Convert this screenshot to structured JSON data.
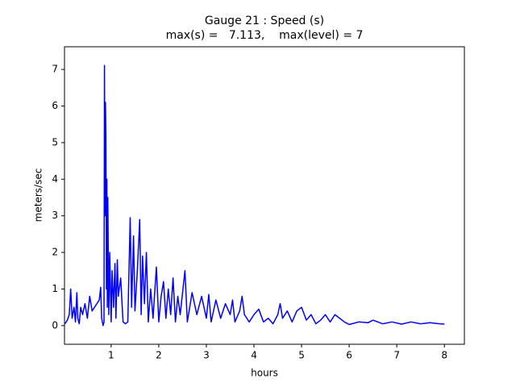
{
  "chart_data": {
    "type": "line",
    "title": "Gauge 21 : Speed (s)",
    "subtitle": "max(s) =   7.113,    max(level) = 7",
    "x_label": "hours",
    "y_label": "meters/sec",
    "x": [
      0.03,
      0.08,
      0.12,
      0.15,
      0.18,
      0.22,
      0.25,
      0.28,
      0.3,
      0.33,
      0.36,
      0.4,
      0.45,
      0.5,
      0.55,
      0.6,
      0.65,
      0.7,
      0.75,
      0.78,
      0.8,
      0.83,
      0.85,
      0.86,
      0.87,
      0.88,
      0.89,
      0.9,
      0.91,
      0.92,
      0.93,
      0.95,
      0.97,
      1.0,
      1.02,
      1.05,
      1.08,
      1.1,
      1.13,
      1.15,
      1.2,
      1.25,
      1.3,
      1.35,
      1.4,
      1.43,
      1.47,
      1.5,
      1.55,
      1.6,
      1.63,
      1.66,
      1.7,
      1.74,
      1.78,
      1.83,
      1.88,
      1.95,
      2.0,
      2.05,
      2.1,
      2.15,
      2.2,
      2.25,
      2.3,
      2.35,
      2.4,
      2.45,
      2.55,
      2.6,
      2.7,
      2.8,
      2.9,
      3.0,
      3.05,
      3.1,
      3.2,
      3.3,
      3.4,
      3.5,
      3.55,
      3.6,
      3.7,
      3.75,
      3.8,
      3.9,
      4.0,
      4.1,
      4.2,
      4.3,
      4.4,
      4.5,
      4.55,
      4.6,
      4.7,
      4.8,
      4.9,
      5.0,
      5.1,
      5.2,
      5.3,
      5.4,
      5.5,
      5.6,
      5.7,
      5.8,
      5.9,
      6.0,
      6.2,
      6.4,
      6.5,
      6.7,
      6.9,
      7.1,
      7.3,
      7.5,
      7.7,
      7.9,
      8.0
    ],
    "series": [
      {
        "name": "speed",
        "color": "#0000ff",
        "values": [
          0.05,
          0.15,
          0.3,
          1.0,
          0.2,
          0.5,
          0.1,
          0.9,
          0.2,
          0.05,
          0.5,
          0.3,
          0.6,
          0.2,
          0.8,
          0.4,
          0.5,
          0.6,
          0.7,
          1.05,
          0.2,
          0.0,
          0.1,
          7.11,
          3.0,
          6.1,
          5.2,
          1.0,
          4.0,
          0.5,
          3.5,
          0.3,
          2.0,
          0.1,
          1.5,
          0.5,
          1.7,
          0.2,
          1.8,
          0.8,
          1.3,
          0.1,
          0.05,
          0.1,
          2.95,
          0.5,
          2.45,
          0.4,
          1.5,
          2.9,
          0.3,
          1.9,
          0.6,
          2.0,
          0.1,
          1.0,
          0.2,
          1.6,
          0.1,
          0.8,
          1.2,
          0.2,
          1.0,
          0.3,
          1.3,
          0.1,
          0.8,
          0.3,
          1.5,
          0.1,
          0.9,
          0.3,
          0.8,
          0.2,
          0.85,
          0.1,
          0.7,
          0.2,
          0.6,
          0.3,
          0.7,
          0.1,
          0.4,
          0.8,
          0.3,
          0.1,
          0.3,
          0.45,
          0.1,
          0.2,
          0.05,
          0.3,
          0.6,
          0.2,
          0.4,
          0.1,
          0.4,
          0.5,
          0.15,
          0.3,
          0.05,
          0.15,
          0.3,
          0.1,
          0.3,
          0.2,
          0.1,
          0.03,
          0.1,
          0.08,
          0.15,
          0.05,
          0.1,
          0.04,
          0.1,
          0.05,
          0.08,
          0.05,
          0.04
        ]
      }
    ],
    "xlim": [
      0.02,
      8.42
    ],
    "ylim": [
      -0.51,
      7.62
    ],
    "xticks": [
      1,
      2,
      3,
      4,
      5,
      6,
      7,
      8
    ],
    "yticks": [
      0,
      1,
      2,
      3,
      4,
      5,
      6,
      7
    ]
  }
}
